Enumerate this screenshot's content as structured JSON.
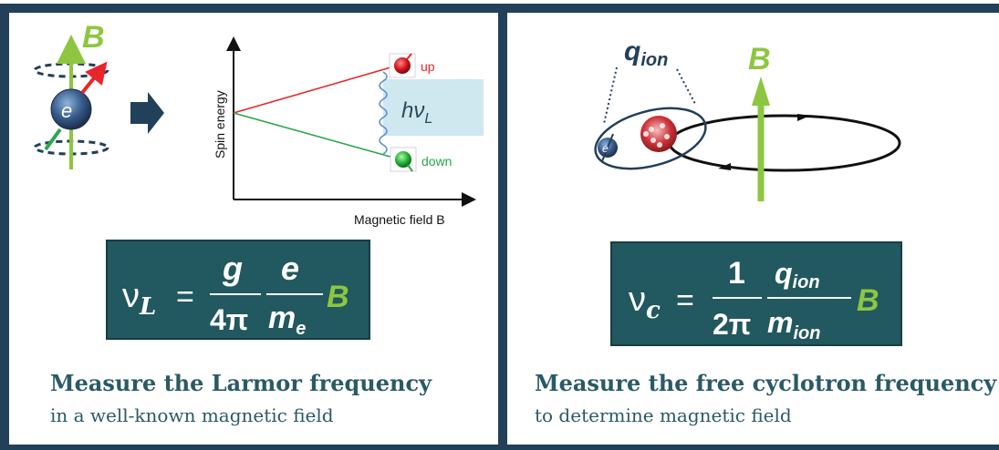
{
  "header_partial": "",
  "left": {
    "b_label": "B",
    "electron_label": "e",
    "y_axis_label": "Spin energy",
    "x_axis_label": "Magnetic field B",
    "up_label": "up",
    "down_label": "down",
    "energy_label_h": "hν",
    "energy_label_sub": "L",
    "formula": {
      "lhs": "ν",
      "lhs_sub": "L",
      "eq": "=",
      "frac1_num": "g",
      "frac1_den": "4π",
      "frac2_num": "e",
      "frac2_den": "m",
      "frac2_den_sub": "e",
      "field": "B"
    },
    "title": "Measure the Larmor frequency",
    "subtitle": "in a well-known magnetic field"
  },
  "right": {
    "q_label": "q",
    "q_sub": "ion",
    "b_label": "B",
    "electron_label": "e",
    "formula": {
      "lhs": "ν",
      "lhs_sub": "c",
      "eq": "=",
      "frac1_num": "1",
      "frac1_den": "2π",
      "frac2_num": "q",
      "frac2_num_sub": "ion",
      "frac2_den": "m",
      "frac2_den_sub": "ion",
      "field": "B"
    },
    "title": "Measure the free cyclotron frequency",
    "subtitle": "to determine magnetic field"
  },
  "colors": {
    "frame": "#22405a",
    "formula_bg": "#22585f",
    "b_green": "#8dc63f",
    "caption": "#2a5a66",
    "up_red": "#e8262b",
    "down_green": "#2aa84a"
  }
}
